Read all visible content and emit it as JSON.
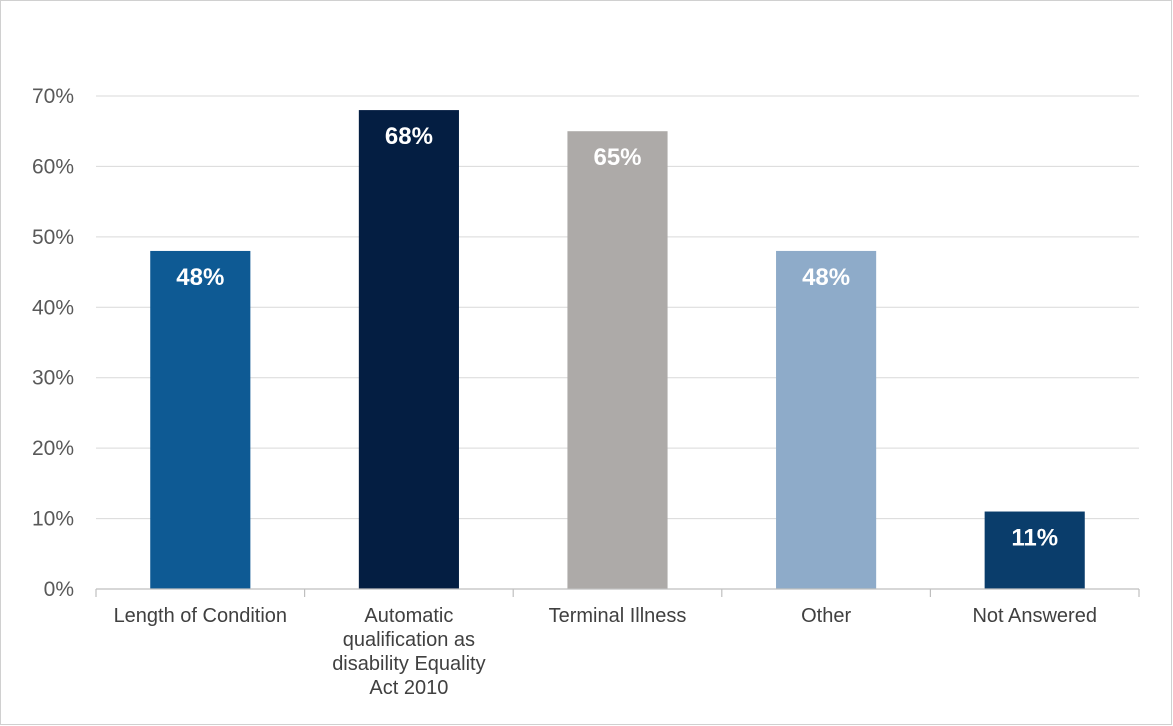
{
  "chart_data": {
    "type": "bar",
    "title": "",
    "xlabel": "",
    "ylabel": "",
    "categories": [
      [
        "Length of Condition"
      ],
      [
        "Automatic",
        "qualification as",
        "disability Equality",
        "Act 2010"
      ],
      [
        "Terminal Illness"
      ],
      [
        "Other"
      ],
      [
        "Not Answered"
      ]
    ],
    "values": [
      48,
      68,
      65,
      48,
      11
    ],
    "data_labels": [
      "48%",
      "68%",
      "65%",
      "48%",
      "11%"
    ],
    "bar_colors": [
      "#0e5a94",
      "#041e42",
      "#adaaa8",
      "#8eabc9",
      "#0a3d6b"
    ],
    "ylim": [
      0,
      70
    ],
    "yticks": [
      0,
      10,
      20,
      30,
      40,
      50,
      60,
      70
    ],
    "ytick_labels": [
      "0%",
      "10%",
      "20%",
      "30%",
      "40%",
      "50%",
      "60%",
      "70%"
    ],
    "grid": true,
    "legend": "none",
    "colors": {
      "gridline": "#d9d9d9",
      "axis": "#bfbfbf",
      "tick_text": "#595959",
      "category_text": "#404040",
      "data_label_text": "#ffffff"
    }
  }
}
